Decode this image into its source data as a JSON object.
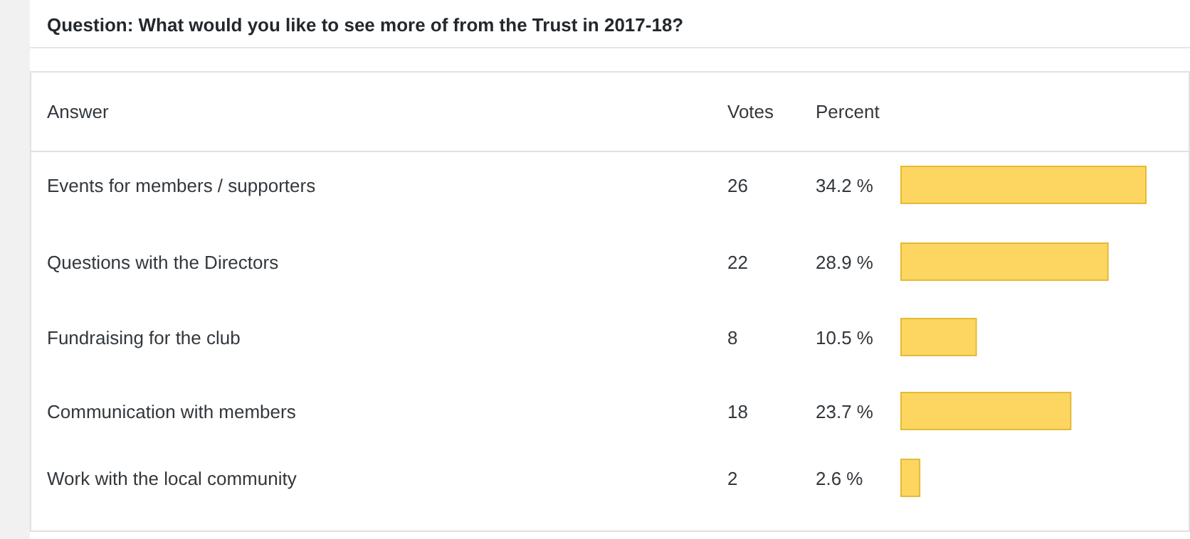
{
  "chart_data": {
    "type": "bar",
    "orientation": "horizontal",
    "title": "Question: What would you like to see more of from the Trust in 2017-18?",
    "categories": [
      "Events for members / supporters",
      "Questions with the Directors",
      "Fundraising for the club",
      "Communication with members",
      "Work with the local community"
    ],
    "values": [
      34.2,
      28.9,
      10.5,
      23.7,
      2.6
    ],
    "value_labels": [
      "34.2 %",
      "28.9 %",
      "10.5 %",
      "23.7 %",
      "2.6 %"
    ],
    "color": "#fcd660",
    "xlim": [
      0,
      34.2
    ],
    "annotations": [
      "Answer",
      "Votes",
      "Percent",
      "26",
      "22",
      "8",
      "18",
      "2"
    ]
  }
}
